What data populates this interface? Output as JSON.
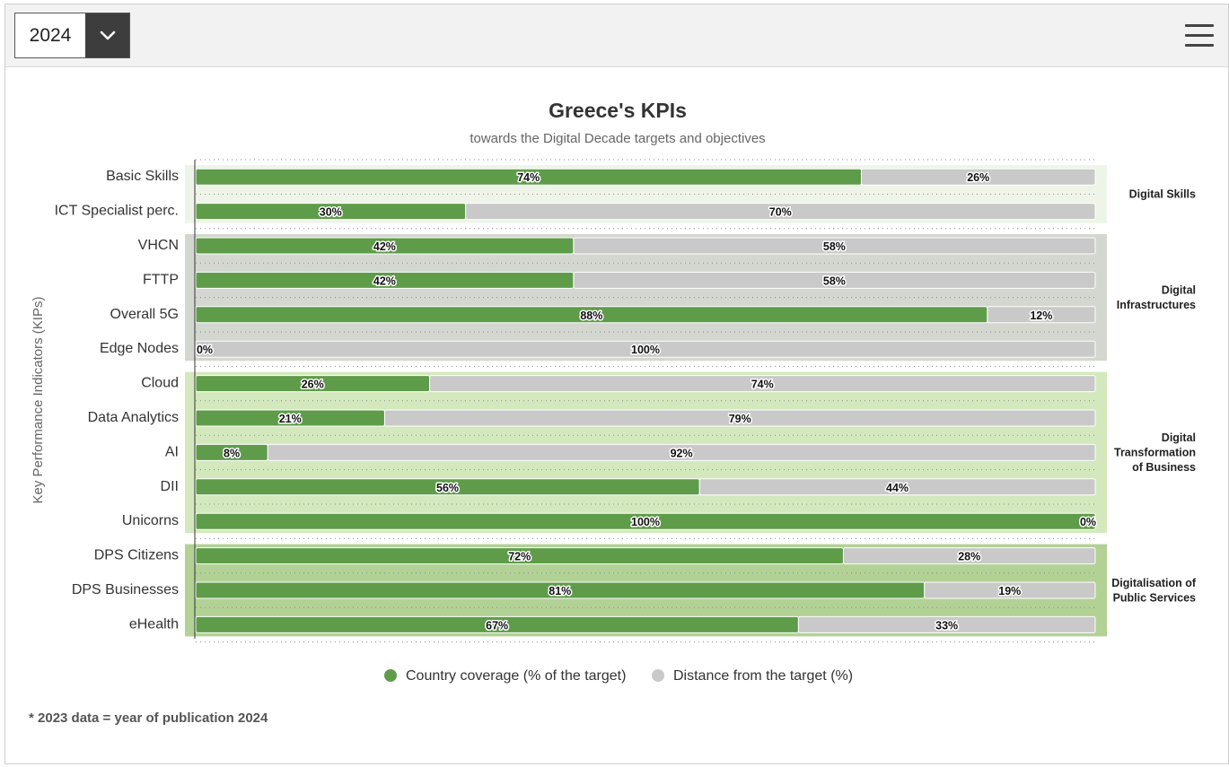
{
  "header": {
    "year_select": {
      "value": "2024"
    },
    "menu_icon": "hamburger-menu-icon"
  },
  "colors": {
    "coverage": "#5e9c4a",
    "distance": "#c9c9c9",
    "group_digital_skills": "#eef4e8",
    "group_digital_infrastructures": "#d3d7cf",
    "group_digital_transformation": "#d4e8bd",
    "group_public_services": "#b2d195"
  },
  "chart_data": {
    "type": "bar",
    "orientation": "horizontal-stacked",
    "title": "Greece's KPIs",
    "subtitle": "towards the Digital Decade targets and objectives",
    "ylabel": "Key Performance Indicators (KIPs)",
    "xlim": [
      0,
      100
    ],
    "categories": [
      "Basic Skills",
      "ICT Specialist perc.",
      "VHCN",
      "FTTP",
      "Overall 5G",
      "Edge Nodes",
      "Cloud",
      "Data Analytics",
      "AI",
      "DII",
      "Unicorns",
      "DPS Citizens",
      "DPS Businesses",
      "eHealth"
    ],
    "series": [
      {
        "name": "Country coverage (% of the target)",
        "values": [
          74,
          30,
          42,
          42,
          88,
          0,
          26,
          21,
          8,
          56,
          100,
          72,
          81,
          67
        ]
      },
      {
        "name": "Distance from the target (%)",
        "values": [
          26,
          70,
          58,
          58,
          12,
          100,
          74,
          79,
          92,
          44,
          0,
          28,
          19,
          33
        ]
      }
    ],
    "groups": [
      {
        "label": "Digital Skills",
        "start": 0,
        "end": 1
      },
      {
        "label": "Digital Infrastructures",
        "start": 2,
        "end": 5
      },
      {
        "label": "Digital Transformation of Business",
        "start": 6,
        "end": 10
      },
      {
        "label": "Digitalisation of Public Services",
        "start": 11,
        "end": 13
      }
    ],
    "legend_position": "bottom-center",
    "data_labels": true,
    "footnote": "* 2023 data = year of publication 2024"
  }
}
